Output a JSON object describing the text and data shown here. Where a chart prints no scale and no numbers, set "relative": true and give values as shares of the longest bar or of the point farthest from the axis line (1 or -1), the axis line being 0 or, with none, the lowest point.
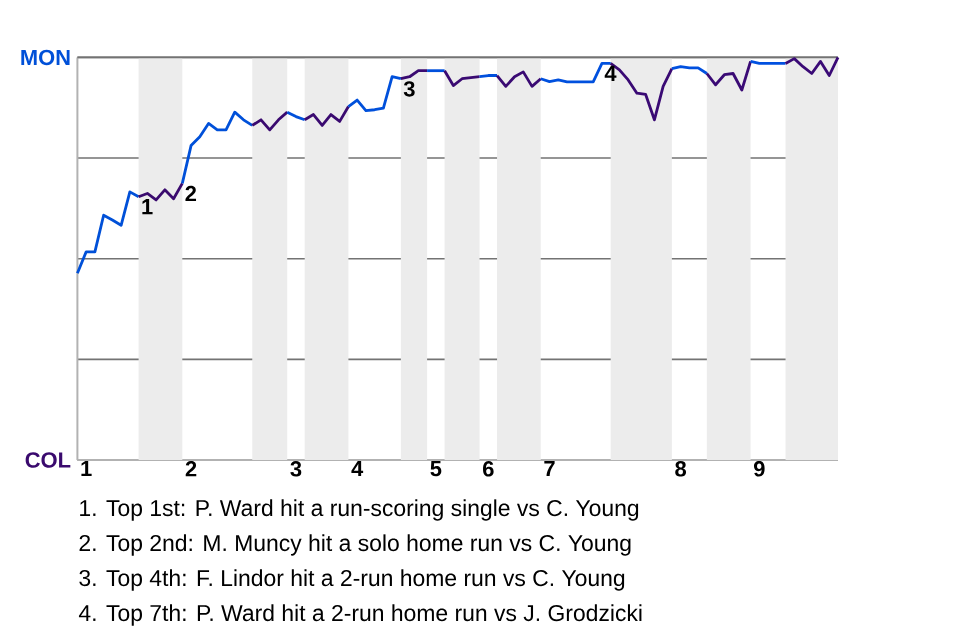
{
  "chart_data": {
    "type": "line",
    "relative": true,
    "categories": [
      null,
      "1",
      null,
      null,
      null,
      null,
      null,
      null,
      null,
      null,
      null,
      null,
      null,
      "2",
      null,
      null,
      null,
      null,
      null,
      null,
      null,
      null,
      null,
      null,
      null,
      "3",
      null,
      null,
      null,
      null,
      null,
      null,
      "4",
      null,
      null,
      null,
      null,
      null,
      null,
      null,
      null,
      "5",
      null,
      null,
      null,
      null,
      null,
      "6",
      null,
      null,
      null,
      null,
      null,
      null,
      "7",
      null,
      null,
      null,
      null,
      null,
      null,
      null,
      null,
      null,
      null,
      null,
      null,
      null,
      null,
      "8",
      null,
      null,
      null,
      null,
      null,
      null,
      null,
      null,
      "9",
      null,
      null,
      null,
      null,
      null,
      null,
      null,
      null,
      null
    ],
    "grid": "y",
    "marker": "none",
    "line_style": "solid",
    "series": [
      {
        "color": "#0050d8",
        "values": [
          0.464,
          0.517,
          0.517,
          0.608,
          0.596,
          0.583,
          0.666,
          0.654,
          null,
          null,
          null,
          null,
          null,
          null,
          null,
          null,
          null,
          null,
          null,
          null,
          null,
          null,
          null,
          null,
          null,
          null,
          null,
          null,
          null,
          null,
          null,
          null,
          null,
          null,
          null,
          null,
          null,
          null,
          null,
          null,
          null,
          null,
          null,
          null,
          null,
          null,
          null,
          null,
          null,
          null,
          null,
          null,
          null,
          null,
          null,
          null,
          null,
          null,
          null,
          null,
          null,
          null,
          null,
          null,
          null,
          null,
          null,
          null,
          null,
          null,
          null,
          null,
          null,
          null,
          null,
          null,
          null,
          null,
          null,
          null,
          null,
          null,
          null,
          null,
          null,
          null,
          null,
          null
        ]
      },
      {
        "color": "#3a0a6e",
        "values": [
          null,
          null,
          null,
          null,
          null,
          null,
          null,
          0.654,
          0.662,
          0.646,
          0.671,
          0.649,
          0.687,
          null,
          null,
          null,
          null,
          null,
          null,
          null,
          null,
          null,
          null,
          null,
          null,
          null,
          null,
          null,
          null,
          null,
          null,
          null,
          null,
          null,
          null,
          null,
          null,
          null,
          null,
          null,
          null,
          null,
          null,
          null,
          null,
          null,
          null,
          null,
          null,
          null,
          null,
          null,
          null,
          null,
          null,
          null,
          null,
          null,
          null,
          null,
          null,
          null,
          null,
          null,
          null,
          null,
          null,
          null,
          null,
          null,
          null,
          null,
          null,
          null,
          null,
          null,
          null,
          null,
          null,
          null,
          null,
          null,
          null,
          null,
          null,
          null,
          null,
          null
        ]
      },
      {
        "color": "#0050d9",
        "values": [
          null,
          null,
          null,
          null,
          null,
          null,
          null,
          null,
          null,
          null,
          null,
          null,
          0.687,
          0.781,
          0.803,
          0.836,
          0.82,
          0.82,
          0.864,
          0.845,
          0.831,
          null,
          null,
          null,
          null,
          null,
          null,
          null,
          null,
          null,
          null,
          null,
          null,
          null,
          null,
          null,
          null,
          null,
          null,
          null,
          null,
          null,
          null,
          null,
          null,
          null,
          null,
          null,
          null,
          null,
          null,
          null,
          null,
          null,
          null,
          null,
          null,
          null,
          null,
          null,
          null,
          null,
          null,
          null,
          null,
          null,
          null,
          null,
          null,
          null,
          null,
          null,
          null,
          null,
          null,
          null,
          null,
          null,
          null,
          null,
          null,
          null,
          null,
          null,
          null,
          null,
          null,
          null
        ]
      },
      {
        "color": "#3a0a6f",
        "values": [
          null,
          null,
          null,
          null,
          null,
          null,
          null,
          null,
          null,
          null,
          null,
          null,
          null,
          null,
          null,
          null,
          null,
          null,
          null,
          null,
          0.831,
          0.845,
          0.82,
          0.845,
          0.864,
          null,
          null,
          null,
          null,
          null,
          null,
          null,
          null,
          null,
          null,
          null,
          null,
          null,
          null,
          null,
          null,
          null,
          null,
          null,
          null,
          null,
          null,
          null,
          null,
          null,
          null,
          null,
          null,
          null,
          null,
          null,
          null,
          null,
          null,
          null,
          null,
          null,
          null,
          null,
          null,
          null,
          null,
          null,
          null,
          null,
          null,
          null,
          null,
          null,
          null,
          null,
          null,
          null,
          null,
          null,
          null,
          null,
          null,
          null,
          null,
          null,
          null,
          null
        ]
      },
      {
        "color": "#0050da",
        "values": [
          null,
          null,
          null,
          null,
          null,
          null,
          null,
          null,
          null,
          null,
          null,
          null,
          null,
          null,
          null,
          null,
          null,
          null,
          null,
          null,
          null,
          null,
          null,
          null,
          0.864,
          0.853,
          0.845,
          null,
          null,
          null,
          null,
          null,
          null,
          null,
          null,
          null,
          null,
          null,
          null,
          null,
          null,
          null,
          null,
          null,
          null,
          null,
          null,
          null,
          null,
          null,
          null,
          null,
          null,
          null,
          null,
          null,
          null,
          null,
          null,
          null,
          null,
          null,
          null,
          null,
          null,
          null,
          null,
          null,
          null,
          null,
          null,
          null,
          null,
          null,
          null,
          null,
          null,
          null,
          null,
          null,
          null,
          null,
          null,
          null,
          null,
          null,
          null,
          null
        ]
      },
      {
        "color": "#3a0a70",
        "values": [
          null,
          null,
          null,
          null,
          null,
          null,
          null,
          null,
          null,
          null,
          null,
          null,
          null,
          null,
          null,
          null,
          null,
          null,
          null,
          null,
          null,
          null,
          null,
          null,
          null,
          null,
          0.845,
          0.858,
          0.831,
          0.858,
          0.841,
          0.878,
          null,
          null,
          null,
          null,
          null,
          null,
          null,
          null,
          null,
          null,
          null,
          null,
          null,
          null,
          null,
          null,
          null,
          null,
          null,
          null,
          null,
          null,
          null,
          null,
          null,
          null,
          null,
          null,
          null,
          null,
          null,
          null,
          null,
          null,
          null,
          null,
          null,
          null,
          null,
          null,
          null,
          null,
          null,
          null,
          null,
          null,
          null,
          null,
          null,
          null,
          null,
          null,
          null,
          null,
          null,
          null
        ]
      },
      {
        "color": "#0050db",
        "values": [
          null,
          null,
          null,
          null,
          null,
          null,
          null,
          null,
          null,
          null,
          null,
          null,
          null,
          null,
          null,
          null,
          null,
          null,
          null,
          null,
          null,
          null,
          null,
          null,
          null,
          null,
          null,
          null,
          null,
          null,
          null,
          0.878,
          0.894,
          0.868,
          0.87,
          0.874,
          0.952,
          0.947,
          null,
          null,
          null,
          null,
          null,
          null,
          null,
          null,
          null,
          null,
          null,
          null,
          null,
          null,
          null,
          null,
          null,
          null,
          null,
          null,
          null,
          null,
          null,
          null,
          null,
          null,
          null,
          null,
          null,
          null,
          null,
          null,
          null,
          null,
          null,
          null,
          null,
          null,
          null,
          null,
          null,
          null,
          null,
          null,
          null,
          null,
          null,
          null,
          null,
          null
        ]
      },
      {
        "color": "#3a0a71",
        "values": [
          null,
          null,
          null,
          null,
          null,
          null,
          null,
          null,
          null,
          null,
          null,
          null,
          null,
          null,
          null,
          null,
          null,
          null,
          null,
          null,
          null,
          null,
          null,
          null,
          null,
          null,
          null,
          null,
          null,
          null,
          null,
          null,
          null,
          null,
          null,
          null,
          null,
          0.947,
          0.952,
          0.967,
          0.967,
          null,
          null,
          null,
          null,
          null,
          null,
          null,
          null,
          null,
          null,
          null,
          null,
          null,
          null,
          null,
          null,
          null,
          null,
          null,
          null,
          null,
          null,
          null,
          null,
          null,
          null,
          null,
          null,
          null,
          null,
          null,
          null,
          null,
          null,
          null,
          null,
          null,
          null,
          null,
          null,
          null,
          null,
          null,
          null,
          null,
          null,
          null
        ]
      },
      {
        "color": "#0050dc",
        "values": [
          null,
          null,
          null,
          null,
          null,
          null,
          null,
          null,
          null,
          null,
          null,
          null,
          null,
          null,
          null,
          null,
          null,
          null,
          null,
          null,
          null,
          null,
          null,
          null,
          null,
          null,
          null,
          null,
          null,
          null,
          null,
          null,
          null,
          null,
          null,
          null,
          null,
          null,
          null,
          null,
          0.967,
          0.967,
          0.967,
          null,
          null,
          null,
          null,
          null,
          null,
          null,
          null,
          null,
          null,
          null,
          null,
          null,
          null,
          null,
          null,
          null,
          null,
          null,
          null,
          null,
          null,
          null,
          null,
          null,
          null,
          null,
          null,
          null,
          null,
          null,
          null,
          null,
          null,
          null,
          null,
          null,
          null,
          null,
          null,
          null,
          null,
          null,
          null,
          null
        ]
      },
      {
        "color": "#3a0a72",
        "values": [
          null,
          null,
          null,
          null,
          null,
          null,
          null,
          null,
          null,
          null,
          null,
          null,
          null,
          null,
          null,
          null,
          null,
          null,
          null,
          null,
          null,
          null,
          null,
          null,
          null,
          null,
          null,
          null,
          null,
          null,
          null,
          null,
          null,
          null,
          null,
          null,
          null,
          null,
          null,
          null,
          null,
          null,
          0.967,
          0.93,
          0.947,
          0.95,
          0.952,
          null,
          null,
          null,
          null,
          null,
          null,
          null,
          null,
          null,
          null,
          null,
          null,
          null,
          null,
          null,
          null,
          null,
          null,
          null,
          null,
          null,
          null,
          null,
          null,
          null,
          null,
          null,
          null,
          null,
          null,
          null,
          null,
          null,
          null,
          null,
          null,
          null,
          null,
          null,
          null,
          null
        ]
      },
      {
        "color": "#0050dd",
        "values": [
          null,
          null,
          null,
          null,
          null,
          null,
          null,
          null,
          null,
          null,
          null,
          null,
          null,
          null,
          null,
          null,
          null,
          null,
          null,
          null,
          null,
          null,
          null,
          null,
          null,
          null,
          null,
          null,
          null,
          null,
          null,
          null,
          null,
          null,
          null,
          null,
          null,
          null,
          null,
          null,
          null,
          null,
          null,
          null,
          null,
          null,
          0.952,
          0.955,
          0.955,
          null,
          null,
          null,
          null,
          null,
          null,
          null,
          null,
          null,
          null,
          null,
          null,
          null,
          null,
          null,
          null,
          null,
          null,
          null,
          null,
          null,
          null,
          null,
          null,
          null,
          null,
          null,
          null,
          null,
          null,
          null,
          null,
          null,
          null,
          null,
          null,
          null,
          null,
          null
        ]
      },
      {
        "color": "#3a0a73",
        "values": [
          null,
          null,
          null,
          null,
          null,
          null,
          null,
          null,
          null,
          null,
          null,
          null,
          null,
          null,
          null,
          null,
          null,
          null,
          null,
          null,
          null,
          null,
          null,
          null,
          null,
          null,
          null,
          null,
          null,
          null,
          null,
          null,
          null,
          null,
          null,
          null,
          null,
          null,
          null,
          null,
          null,
          null,
          null,
          null,
          null,
          null,
          null,
          null,
          0.955,
          0.928,
          0.952,
          0.964,
          0.928,
          0.947,
          null,
          null,
          null,
          null,
          null,
          null,
          null,
          null,
          null,
          null,
          null,
          null,
          null,
          null,
          null,
          null,
          null,
          null,
          null,
          null,
          null,
          null,
          null,
          null,
          null,
          null,
          null,
          null,
          null,
          null,
          null,
          null,
          null,
          null
        ]
      },
      {
        "color": "#0050de",
        "values": [
          null,
          null,
          null,
          null,
          null,
          null,
          null,
          null,
          null,
          null,
          null,
          null,
          null,
          null,
          null,
          null,
          null,
          null,
          null,
          null,
          null,
          null,
          null,
          null,
          null,
          null,
          null,
          null,
          null,
          null,
          null,
          null,
          null,
          null,
          null,
          null,
          null,
          null,
          null,
          null,
          null,
          null,
          null,
          null,
          null,
          null,
          null,
          null,
          null,
          null,
          null,
          null,
          null,
          0.947,
          0.94,
          0.944,
          0.939,
          0.939,
          0.939,
          0.939,
          0.985,
          0.985,
          null,
          null,
          null,
          null,
          null,
          null,
          null,
          null,
          null,
          null,
          null,
          null,
          null,
          null,
          null,
          null,
          null,
          null,
          null,
          null,
          null,
          null,
          null,
          null,
          null,
          null
        ]
      },
      {
        "color": "#3a0a74",
        "values": [
          null,
          null,
          null,
          null,
          null,
          null,
          null,
          null,
          null,
          null,
          null,
          null,
          null,
          null,
          null,
          null,
          null,
          null,
          null,
          null,
          null,
          null,
          null,
          null,
          null,
          null,
          null,
          null,
          null,
          null,
          null,
          null,
          null,
          null,
          null,
          null,
          null,
          null,
          null,
          null,
          null,
          null,
          null,
          null,
          null,
          null,
          null,
          null,
          null,
          null,
          null,
          null,
          null,
          null,
          null,
          null,
          null,
          null,
          null,
          null,
          null,
          0.985,
          0.969,
          0.944,
          0.911,
          0.908,
          0.845,
          0.928,
          0.972,
          null,
          null,
          null,
          null,
          null,
          null,
          null,
          null,
          null,
          null,
          null,
          null,
          null,
          null,
          null,
          null,
          null,
          null,
          null
        ]
      },
      {
        "color": "#0050df",
        "values": [
          null,
          null,
          null,
          null,
          null,
          null,
          null,
          null,
          null,
          null,
          null,
          null,
          null,
          null,
          null,
          null,
          null,
          null,
          null,
          null,
          null,
          null,
          null,
          null,
          null,
          null,
          null,
          null,
          null,
          null,
          null,
          null,
          null,
          null,
          null,
          null,
          null,
          null,
          null,
          null,
          null,
          null,
          null,
          null,
          null,
          null,
          null,
          null,
          null,
          null,
          null,
          null,
          null,
          null,
          null,
          null,
          null,
          null,
          null,
          null,
          null,
          null,
          null,
          null,
          null,
          null,
          null,
          null,
          0.972,
          0.977,
          0.974,
          0.974,
          0.96,
          null,
          null,
          null,
          null,
          null,
          null,
          null,
          null,
          null,
          null,
          null,
          null,
          null,
          null,
          null
        ]
      },
      {
        "color": "#3a0a75",
        "values": [
          null,
          null,
          null,
          null,
          null,
          null,
          null,
          null,
          null,
          null,
          null,
          null,
          null,
          null,
          null,
          null,
          null,
          null,
          null,
          null,
          null,
          null,
          null,
          null,
          null,
          null,
          null,
          null,
          null,
          null,
          null,
          null,
          null,
          null,
          null,
          null,
          null,
          null,
          null,
          null,
          null,
          null,
          null,
          null,
          null,
          null,
          null,
          null,
          null,
          null,
          null,
          null,
          null,
          null,
          null,
          null,
          null,
          null,
          null,
          null,
          null,
          null,
          null,
          null,
          null,
          null,
          null,
          null,
          null,
          null,
          null,
          null,
          0.96,
          0.932,
          0.957,
          0.96,
          0.919,
          0.99,
          null,
          null,
          null,
          null,
          null,
          null,
          null,
          null,
          null,
          null
        ]
      },
      {
        "color": "#0050e0",
        "values": [
          null,
          null,
          null,
          null,
          null,
          null,
          null,
          null,
          null,
          null,
          null,
          null,
          null,
          null,
          null,
          null,
          null,
          null,
          null,
          null,
          null,
          null,
          null,
          null,
          null,
          null,
          null,
          null,
          null,
          null,
          null,
          null,
          null,
          null,
          null,
          null,
          null,
          null,
          null,
          null,
          null,
          null,
          null,
          null,
          null,
          null,
          null,
          null,
          null,
          null,
          null,
          null,
          null,
          null,
          null,
          null,
          null,
          null,
          null,
          null,
          null,
          null,
          null,
          null,
          null,
          null,
          null,
          null,
          null,
          null,
          null,
          null,
          null,
          null,
          null,
          null,
          null,
          0.99,
          0.985,
          0.985,
          0.985,
          0.985,
          null,
          null,
          null,
          null,
          null,
          null
        ]
      },
      {
        "color": "#3a0a76",
        "values": [
          null,
          null,
          null,
          null,
          null,
          null,
          null,
          null,
          null,
          null,
          null,
          null,
          null,
          null,
          null,
          null,
          null,
          null,
          null,
          null,
          null,
          null,
          null,
          null,
          null,
          null,
          null,
          null,
          null,
          null,
          null,
          null,
          null,
          null,
          null,
          null,
          null,
          null,
          null,
          null,
          null,
          null,
          null,
          null,
          null,
          null,
          null,
          null,
          null,
          null,
          null,
          null,
          null,
          null,
          null,
          null,
          null,
          null,
          null,
          null,
          null,
          null,
          null,
          null,
          null,
          null,
          null,
          null,
          null,
          null,
          null,
          null,
          null,
          null,
          null,
          null,
          null,
          null,
          null,
          null,
          null,
          0.985,
          0.997,
          0.977,
          0.96,
          0.99,
          0.955,
          1.0
        ]
      }
    ],
    "annotations": [
      "MON",
      "COL",
      {
        "text": "1",
        "y": 0.654
      },
      {
        "text": "2",
        "y": 0.687
      },
      {
        "text": "3",
        "y": 0.947
      },
      {
        "text": "4",
        "y": 0.985
      },
      "1. Top 1st: P. Ward hit a run-scoring single vs C. Young",
      "2. Top 2nd: M. Muncy hit a solo home run vs C. Young",
      "3. Top 4th: F. Lindor hit a 2-run home run vs C. Young",
      "4. Top 7th: P. Ward hit a 2-run home run vs J. Grodzicki"
    ]
  }
}
